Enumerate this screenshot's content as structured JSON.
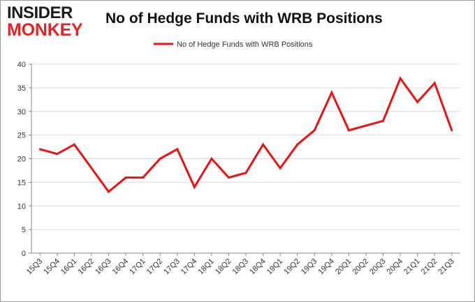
{
  "logo": {
    "line1": "INSIDER",
    "line2": "MONKEY",
    "color_dark": "#1d1d1d",
    "color_accent": "#e32426"
  },
  "chart_data": {
    "type": "line",
    "title": "No of Hedge Funds with WRB Positions",
    "xlabel": "",
    "ylabel": "",
    "categories": [
      "15Q3",
      "15Q4",
      "16Q1",
      "16Q2",
      "16Q3",
      "16Q4",
      "17Q1",
      "17Q2",
      "17Q3",
      "17Q4",
      "18Q1",
      "18Q2",
      "18Q3",
      "18Q4",
      "19Q1",
      "19Q2",
      "19Q3",
      "19Q4",
      "20Q1",
      "20Q2",
      "20Q3",
      "20Q4",
      "21Q1",
      "21Q2",
      "21Q3"
    ],
    "series": [
      {
        "name": "No of Hedge Funds with WRB Positions",
        "color": "#ee1111",
        "values": [
          22,
          21,
          23,
          18,
          13,
          16,
          16,
          20,
          22,
          14,
          20,
          16,
          17,
          23,
          18,
          23,
          26,
          34,
          26,
          27,
          28,
          37,
          32,
          36,
          26
        ]
      }
    ],
    "ylim": [
      0,
      40
    ],
    "yticks": [
      0,
      5,
      10,
      15,
      20,
      25,
      30,
      35,
      40
    ],
    "grid": true,
    "legend": "top-center"
  }
}
